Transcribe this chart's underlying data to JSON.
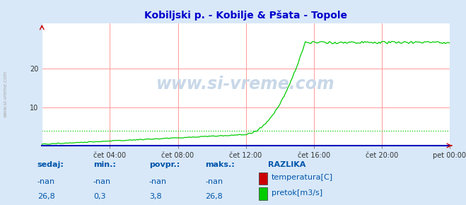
{
  "title": "Kobiljski p. - Kobilje & Pšata - Topole",
  "title_color": "#0000cc",
  "background_color": "#d8e8f8",
  "plot_bg_color": "#ffffff",
  "grid_color_h": "#ff9999",
  "grid_color_v": "#ff9999",
  "x_min": 0,
  "x_max": 288,
  "y_min": 0,
  "y_max": 30,
  "x_tick_labels": [
    "čet 04:00",
    "čet 08:00",
    "čet 12:00",
    "čet 16:00",
    "čet 20:00",
    "pet 00:00"
  ],
  "x_tick_positions": [
    48,
    96,
    144,
    192,
    240,
    288
  ],
  "watermark": "www.si-vreme.com",
  "temp_color": "#cc0000",
  "flow_color": "#00cc00",
  "flow_avg": 3.8,
  "legend_labels": [
    "temperatura[C]",
    "pretok[m3/s]"
  ],
  "legend_colors": [
    "#cc0000",
    "#00cc00"
  ],
  "table_headers": [
    "sedaj:",
    "min.:",
    "povpr.:",
    "maks.:"
  ],
  "table_row1": [
    "-nan",
    "-nan",
    "-nan",
    "-nan"
  ],
  "table_row2": [
    "26,8",
    "0,3",
    "3,8",
    "26,8"
  ],
  "table_color": "#0055aa",
  "razlika_label": "RAZLIKA",
  "axis_arrow_color": "#cc0000",
  "bottom_spine_color": "#0000bb",
  "side_text_color": "#aaaaaa"
}
